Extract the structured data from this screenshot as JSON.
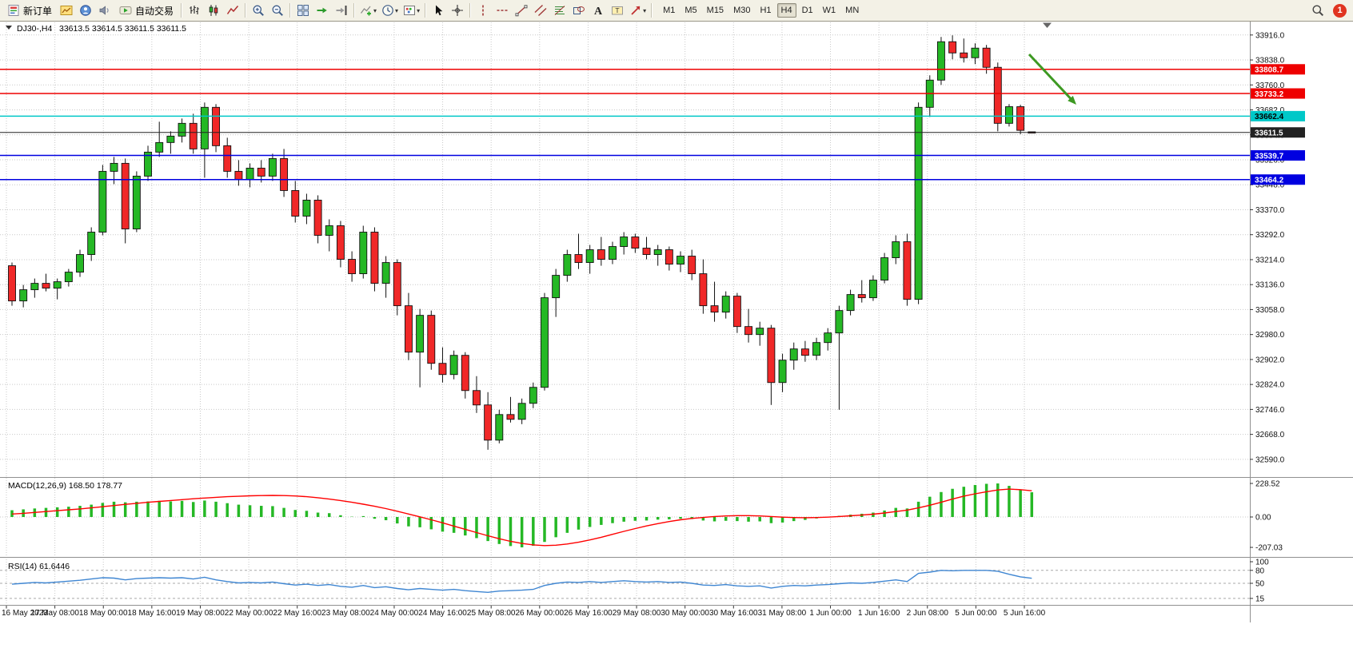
{
  "toolbar": {
    "notification_badge": "1",
    "timeframes": [
      "M1",
      "M5",
      "M15",
      "M30",
      "H1",
      "H4",
      "D1",
      "W1",
      "MN"
    ],
    "active_timeframe": "H4",
    "items": [
      {
        "name": "new-order-button",
        "icon": "new-order-icon",
        "label": "新订单"
      },
      {
        "name": "charts-button",
        "icon": "chart-window-icon"
      },
      {
        "name": "profiles-button",
        "icon": "profiles-icon"
      },
      {
        "name": "alerts-button",
        "icon": "alerts-icon"
      },
      {
        "name": "autotrading-button",
        "icon": "autotrading-icon",
        "label": "自动交易"
      },
      {
        "sep": true
      },
      {
        "name": "bar-chart-button",
        "icon": "bar-chart-icon"
      },
      {
        "name": "candlestick-chart-button",
        "icon": "candlestick-icon"
      },
      {
        "name": "line-chart-button",
        "icon": "line-chart-icon"
      },
      {
        "sep": true
      },
      {
        "name": "zoom-in-button",
        "icon": "zoom-in-icon"
      },
      {
        "name": "zoom-out-button",
        "icon": "zoom-out-icon"
      },
      {
        "sep": true
      },
      {
        "name": "tile-windows-button",
        "icon": "tile-windows-icon"
      },
      {
        "name": "auto-scroll-button",
        "icon": "auto-scroll-icon"
      },
      {
        "name": "chart-shift-button",
        "icon": "chart-shift-icon"
      },
      {
        "sep": true
      },
      {
        "name": "indicators-button",
        "icon": "indicators-icon",
        "dropdown": true
      },
      {
        "name": "periods-button",
        "icon": "periods-icon",
        "dropdown": true
      },
      {
        "name": "templates-button",
        "icon": "templates-icon",
        "dropdown": true
      },
      {
        "sep": true
      },
      {
        "name": "cursor-button",
        "icon": "cursor-icon"
      },
      {
        "name": "crosshair-button",
        "icon": "crosshair-icon"
      },
      {
        "sep": true
      },
      {
        "name": "vertical-line-button",
        "icon": "vertical-line-icon"
      },
      {
        "name": "horizontal-line-button",
        "icon": "horizontal-line-icon"
      },
      {
        "name": "trendline-button",
        "icon": "trendline-icon"
      },
      {
        "name": "channel-button",
        "icon": "channel-icon"
      },
      {
        "name": "fibonacci-button",
        "icon": "fibonacci-icon"
      },
      {
        "name": "shapes-button",
        "icon": "shapes-icon"
      },
      {
        "name": "text-button",
        "icon": "text-icon"
      },
      {
        "name": "text-label-button",
        "icon": "text-label-icon"
      },
      {
        "name": "arrows-button",
        "icon": "arrows-icon",
        "dropdown": true
      },
      {
        "sep": true
      }
    ]
  },
  "chart": {
    "title": "DJ30-,H4",
    "quote": "33613.5 33614.5 33611.5 33611.5",
    "up_color": "#25b825",
    "down_color": "#f02828",
    "annotation_arrow": {
      "color": "#3d9922"
    },
    "price_ticks": [
      "33916.0",
      "33838.0",
      "33760.0",
      "33682.0",
      "33604.0",
      "33526.0",
      "33448.0",
      "33370.0",
      "33292.0",
      "33214.0",
      "33136.0",
      "33058.0",
      "32980.0",
      "32902.0",
      "32824.0",
      "32746.0",
      "32668.0",
      "32590.0"
    ],
    "time_labels": [
      "16 May 2023",
      "17 May 08:00",
      "18 May 00:00",
      "18 May 16:00",
      "19 May 08:00",
      "22 May 00:00",
      "22 May 16:00",
      "23 May 08:00",
      "24 May 00:00",
      "24 May 16:00",
      "25 May 08:00",
      "26 May 00:00",
      "26 May 16:00",
      "29 May 08:00",
      "30 May 00:00",
      "30 May 16:00",
      "31 May 08:00",
      "1 Jun 00:00",
      "1 Jun 16:00",
      "2 Jun 08:00",
      "5 Jun 00:00",
      "5 Jun 16:00"
    ],
    "levels": [
      {
        "price": 33808.7,
        "label": "33808.7",
        "color": "#ee0000",
        "text_color": "#ffffff",
        "current": false
      },
      {
        "price": 33733.2,
        "label": "33733.2",
        "color": "#ee0000",
        "text_color": "#ffffff",
        "current": false
      },
      {
        "price": 33662.4,
        "label": "33662.4",
        "color": "#00c8c8",
        "text_color": "#000000",
        "current": false
      },
      {
        "price": 33611.5,
        "label": "33611.5",
        "color": "#222222",
        "text_color": "#ffffff",
        "current": true
      },
      {
        "price": 33539.7,
        "label": "33539.7",
        "color": "#0000e0",
        "text_color": "#ffffff",
        "current": false
      },
      {
        "price": 33464.2,
        "label": "33464.2",
        "color": "#0000e0",
        "text_color": "#ffffff",
        "current": false
      }
    ],
    "candles": [
      [
        33195,
        33205,
        33070,
        33085
      ],
      [
        33085,
        33135,
        33065,
        33120
      ],
      [
        33120,
        33155,
        33095,
        33140
      ],
      [
        33140,
        33170,
        33115,
        33125
      ],
      [
        33125,
        33155,
        33090,
        33145
      ],
      [
        33145,
        33185,
        33130,
        33175
      ],
      [
        33175,
        33245,
        33160,
        33230
      ],
      [
        33230,
        33315,
        33210,
        33300
      ],
      [
        33300,
        33510,
        33290,
        33490
      ],
      [
        33490,
        33535,
        33450,
        33515
      ],
      [
        33515,
        33530,
        33265,
        33310
      ],
      [
        33310,
        33490,
        33300,
        33475
      ],
      [
        33475,
        33570,
        33460,
        33550
      ],
      [
        33550,
        33645,
        33535,
        33580
      ],
      [
        33580,
        33615,
        33545,
        33600
      ],
      [
        33600,
        33655,
        33580,
        33640
      ],
      [
        33640,
        33670,
        33545,
        33560
      ],
      [
        33560,
        33705,
        33470,
        33690
      ],
      [
        33690,
        33700,
        33550,
        33570
      ],
      [
        33570,
        33595,
        33470,
        33490
      ],
      [
        33490,
        33525,
        33445,
        33465
      ],
      [
        33465,
        33515,
        33440,
        33500
      ],
      [
        33500,
        33525,
        33455,
        33475
      ],
      [
        33475,
        33545,
        33460,
        33530
      ],
      [
        33530,
        33560,
        33410,
        33430
      ],
      [
        33430,
        33460,
        33330,
        33350
      ],
      [
        33350,
        33420,
        33325,
        33400
      ],
      [
        33400,
        33415,
        33265,
        33290
      ],
      [
        33290,
        33340,
        33240,
        33320
      ],
      [
        33320,
        33335,
        33190,
        33215
      ],
      [
        33215,
        33240,
        33145,
        33170
      ],
      [
        33170,
        33320,
        33155,
        33300
      ],
      [
        33300,
        33315,
        33115,
        33140
      ],
      [
        33140,
        33225,
        33095,
        33205
      ],
      [
        33205,
        33215,
        33040,
        33070
      ],
      [
        33070,
        33110,
        32900,
        32925
      ],
      [
        32925,
        33060,
        32815,
        33040
      ],
      [
        33040,
        33055,
        32870,
        32890
      ],
      [
        32890,
        32940,
        32830,
        32855
      ],
      [
        32855,
        32930,
        32840,
        32915
      ],
      [
        32915,
        32925,
        32780,
        32805
      ],
      [
        32805,
        32850,
        32735,
        32760
      ],
      [
        32760,
        32800,
        32620,
        32650
      ],
      [
        32650,
        32745,
        32640,
        32730
      ],
      [
        32730,
        32785,
        32705,
        32715
      ],
      [
        32715,
        32780,
        32700,
        32765
      ],
      [
        32765,
        32830,
        32750,
        32815
      ],
      [
        32815,
        33110,
        32805,
        33095
      ],
      [
        33095,
        33185,
        33035,
        33165
      ],
      [
        33165,
        33245,
        33145,
        33230
      ],
      [
        33230,
        33295,
        33185,
        33205
      ],
      [
        33205,
        33260,
        33170,
        33245
      ],
      [
        33245,
        33285,
        33195,
        33215
      ],
      [
        33215,
        33270,
        33200,
        33255
      ],
      [
        33255,
        33300,
        33230,
        33285
      ],
      [
        33285,
        33295,
        33235,
        33250
      ],
      [
        33250,
        33285,
        33215,
        33230
      ],
      [
        33230,
        33260,
        33195,
        33245
      ],
      [
        33245,
        33255,
        33180,
        33200
      ],
      [
        33200,
        33240,
        33175,
        33225
      ],
      [
        33225,
        33245,
        33150,
        33170
      ],
      [
        33170,
        33215,
        33045,
        33070
      ],
      [
        33070,
        33145,
        33020,
        33050
      ],
      [
        33050,
        33115,
        33030,
        33100
      ],
      [
        33100,
        33110,
        32985,
        33005
      ],
      [
        33005,
        33060,
        32955,
        32980
      ],
      [
        32980,
        33020,
        32945,
        33000
      ],
      [
        33000,
        33010,
        32760,
        32830
      ],
      [
        32830,
        32920,
        32800,
        32900
      ],
      [
        32900,
        32955,
        32870,
        32935
      ],
      [
        32935,
        32960,
        32895,
        32915
      ],
      [
        32915,
        32970,
        32900,
        32955
      ],
      [
        32955,
        33000,
        32930,
        32985
      ],
      [
        32985,
        33070,
        32745,
        33055
      ],
      [
        33055,
        33120,
        33040,
        33105
      ],
      [
        33105,
        33150,
        33080,
        33095
      ],
      [
        33095,
        33165,
        33085,
        33150
      ],
      [
        33150,
        33235,
        33140,
        33220
      ],
      [
        33220,
        33290,
        33200,
        33270
      ],
      [
        33270,
        33295,
        33070,
        33090
      ],
      [
        33090,
        33705,
        33075,
        33690
      ],
      [
        33690,
        33790,
        33660,
        33775
      ],
      [
        33775,
        33910,
        33760,
        33895
      ],
      [
        33895,
        33915,
        33840,
        33860
      ],
      [
        33860,
        33905,
        33830,
        33845
      ],
      [
        33845,
        33890,
        33825,
        33875
      ],
      [
        33875,
        33885,
        33795,
        33815
      ],
      [
        33815,
        33830,
        33615,
        33640
      ],
      [
        33640,
        33700,
        33630,
        33692
      ],
      [
        33692,
        33698,
        33606,
        33618
      ],
      [
        33613.5,
        33614.5,
        33611.5,
        33611.5
      ]
    ]
  },
  "macd": {
    "label": "MACD(12,26,9) 168.50 178.77",
    "scale_labels": [
      "228.52",
      "0.00",
      "-207.03"
    ],
    "histogram_color": "#25b825",
    "signal_color": "#ff0000",
    "histogram": [
      46,
      52,
      58,
      62,
      66,
      70,
      76,
      84,
      96,
      104,
      100,
      104,
      106,
      110,
      106,
      110,
      102,
      112,
      104,
      94,
      84,
      80,
      76,
      74,
      62,
      48,
      42,
      30,
      26,
      12,
      2,
      6,
      -12,
      -22,
      -44,
      -64,
      -70,
      -84,
      -100,
      -108,
      -126,
      -144,
      -164,
      -184,
      -198,
      -207,
      -196,
      -170,
      -138,
      -108,
      -86,
      -68,
      -54,
      -42,
      -32,
      -26,
      -24,
      -18,
      -16,
      -12,
      -14,
      -24,
      -30,
      -26,
      -28,
      -32,
      -30,
      -42,
      -38,
      -28,
      -20,
      -10,
      -2,
      8,
      16,
      22,
      30,
      44,
      62,
      58,
      104,
      138,
      170,
      192,
      206,
      218,
      226,
      228.5,
      212,
      188,
      168.5
    ],
    "signal": [
      20,
      25,
      31,
      37,
      43,
      49,
      55,
      62,
      70,
      78,
      86,
      93,
      100,
      106,
      112,
      118,
      124,
      129,
      134,
      138,
      141,
      144,
      146,
      147,
      146,
      143,
      138,
      131,
      122,
      112,
      100,
      87,
      73,
      57,
      39,
      20,
      1,
      -19,
      -40,
      -62,
      -84,
      -106,
      -128,
      -148,
      -166,
      -180,
      -190,
      -195,
      -192,
      -184,
      -172,
      -156,
      -138,
      -118,
      -98,
      -79,
      -61,
      -45,
      -31,
      -19,
      -10,
      -3,
      3,
      7,
      9,
      9,
      7,
      3,
      -1,
      -4,
      -5,
      -4,
      -1,
      3,
      8,
      13,
      19,
      27,
      37,
      47,
      62,
      80,
      100,
      122,
      142,
      158,
      172,
      184,
      190,
      186,
      178.8
    ]
  },
  "rsi": {
    "label": "RSI(14) 61.6446",
    "scale_labels": [
      "100",
      "80",
      "50",
      "15"
    ],
    "levels": [
      80,
      50,
      15
    ],
    "line_color": "#3f86d2",
    "values": [
      48,
      50,
      52,
      51,
      53,
      55,
      57,
      60,
      63,
      62,
      58,
      61,
      62,
      63,
      62,
      63,
      60,
      64,
      58,
      54,
      51,
      52,
      51,
      53,
      49,
      46,
      48,
      45,
      47,
      43,
      41,
      45,
      40,
      42,
      38,
      35,
      38,
      36,
      34,
      36,
      33,
      31,
      29,
      32,
      33,
      34,
      36,
      45,
      50,
      53,
      52,
      54,
      52,
      54,
      56,
      54,
      53,
      54,
      52,
      53,
      50,
      46,
      45,
      47,
      44,
      43,
      44,
      39,
      43,
      45,
      44,
      46,
      47,
      49,
      51,
      50,
      52,
      55,
      58,
      54,
      73,
      76,
      80,
      79,
      80,
      80,
      80,
      78,
      71,
      65,
      61.6
    ]
  }
}
